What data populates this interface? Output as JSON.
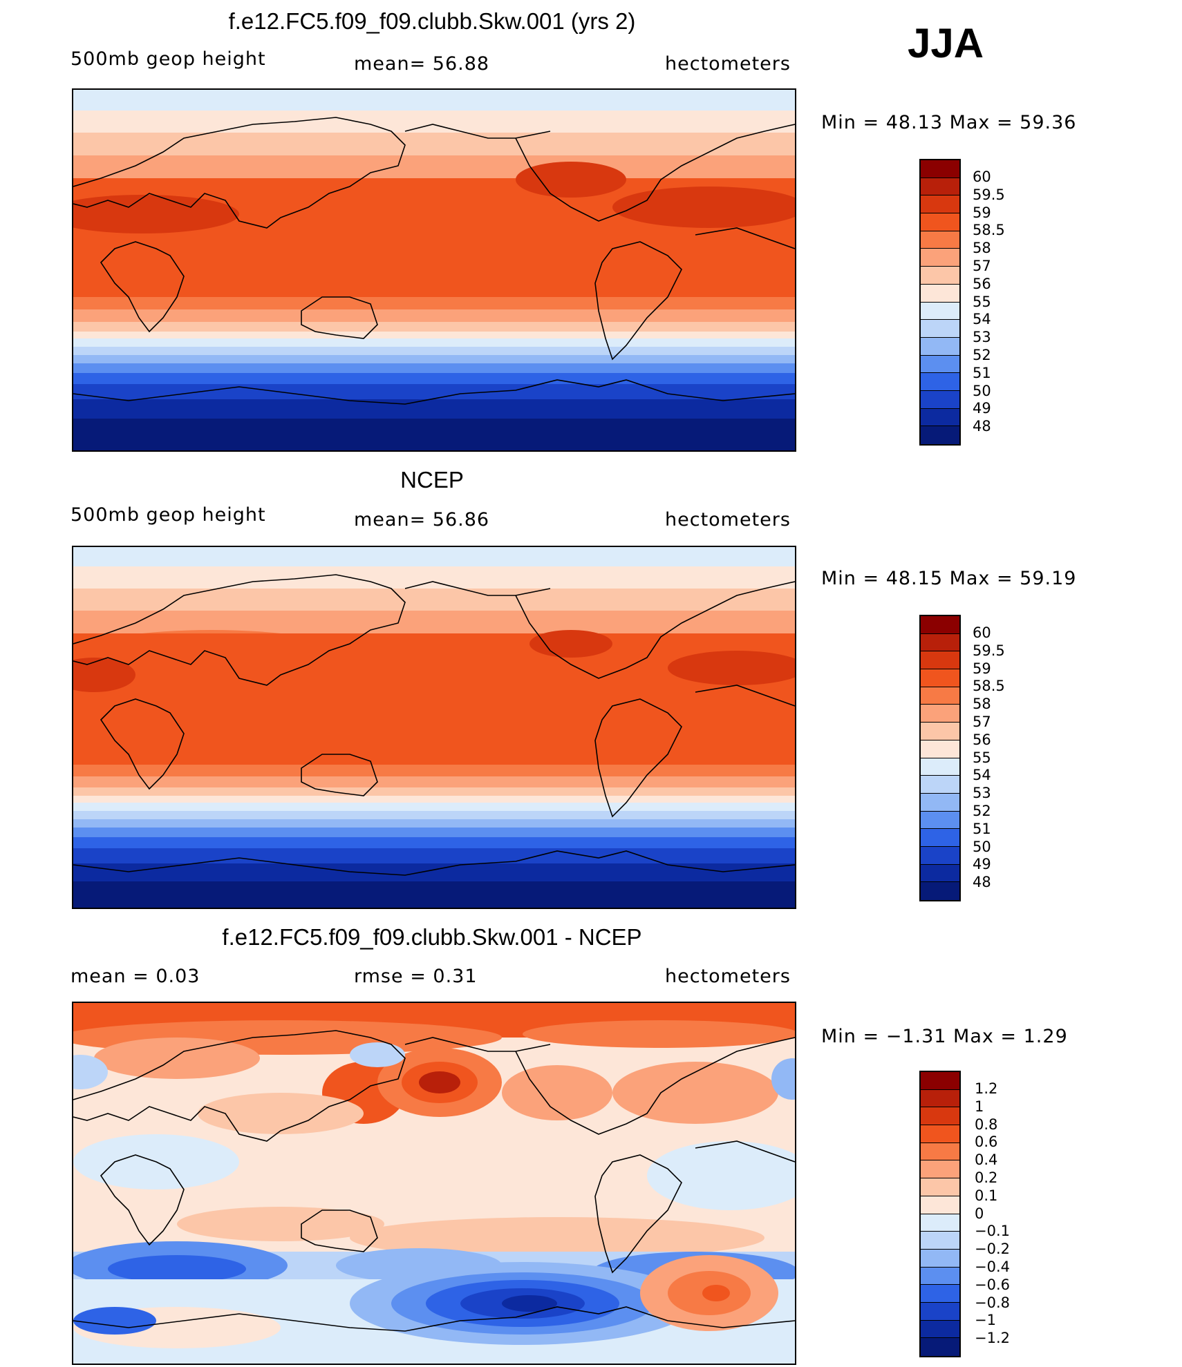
{
  "season": "JJA",
  "panels": [
    {
      "title": "f.e12.FC5.f09_f09.clubb.Skw.001 (yrs 2)",
      "left_label": "500mb geop height",
      "mid_label": "mean=   56.88",
      "units": "hectometers",
      "stats": "Min =    48.13  Max =    59.36",
      "colorbar_labels": [
        "60",
        "59.5",
        "59",
        "58.5",
        "58",
        "57",
        "56",
        "55",
        "54",
        "53",
        "52",
        "51",
        "50",
        "49",
        "48"
      ],
      "colors": [
        "#8b0000",
        "#b8200a",
        "#d8380f",
        "#f0551e",
        "#f77a45",
        "#fba27a",
        "#fcc6a8",
        "#fde6d8",
        "#dcecfa",
        "#bcd5f8",
        "#92b8f5",
        "#5c8ff0",
        "#2e63e6",
        "#1a43c8",
        "#0c2aa0",
        "#061a78"
      ]
    },
    {
      "title": "NCEP",
      "left_label": "500mb geop height",
      "mid_label": "mean=   56.86",
      "units": "hectometers",
      "stats": "Min =    48.15  Max =    59.19",
      "colorbar_labels": [
        "60",
        "59.5",
        "59",
        "58.5",
        "58",
        "57",
        "56",
        "55",
        "54",
        "53",
        "52",
        "51",
        "50",
        "49",
        "48"
      ],
      "colors": [
        "#8b0000",
        "#b8200a",
        "#d8380f",
        "#f0551e",
        "#f77a45",
        "#fba27a",
        "#fcc6a8",
        "#fde6d8",
        "#dcecfa",
        "#bcd5f8",
        "#92b8f5",
        "#5c8ff0",
        "#2e63e6",
        "#1a43c8",
        "#0c2aa0",
        "#061a78"
      ]
    },
    {
      "title": "f.e12.FC5.f09_f09.clubb.Skw.001 - NCEP",
      "left_label": "mean =     0.03",
      "mid_label": "rmse =     0.31",
      "units": "hectometers",
      "stats": "Min =   −1.31  Max =      1.29",
      "colorbar_labels": [
        "1.2",
        "1",
        "0.8",
        "0.6",
        "0.4",
        "0.2",
        "0.1",
        "0",
        "−0.1",
        "−0.2",
        "−0.4",
        "−0.6",
        "−0.8",
        "−1",
        "−1.2"
      ],
      "colors": [
        "#8b0000",
        "#b8200a",
        "#d8380f",
        "#f0551e",
        "#f77a45",
        "#fba27a",
        "#fcc6a8",
        "#fde6d8",
        "#dcecfa",
        "#bcd5f8",
        "#92b8f5",
        "#5c8ff0",
        "#2e63e6",
        "#1a43c8",
        "#0c2aa0",
        "#061a78"
      ]
    }
  ]
}
